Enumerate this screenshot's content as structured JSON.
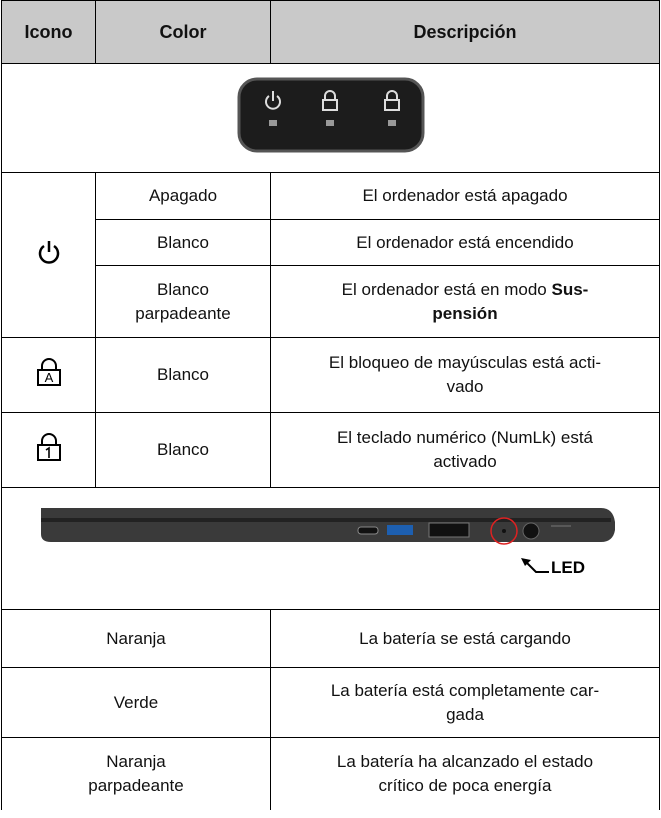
{
  "header": {
    "icon": "Icono",
    "color": "Color",
    "description": "Descripción"
  },
  "led_rows": [
    {
      "color": "Apagado",
      "description": "El ordenador está apagado"
    },
    {
      "color": "Blanco",
      "description": "El ordenador está encendido"
    },
    {
      "color_lines": [
        "Blanco",
        "parpadeante"
      ],
      "description": {
        "text": "El ordenador está en modo",
        "bold_start": "Sus-",
        "bold_end": "pensión"
      }
    },
    {
      "color": "Blanco",
      "description_lines": [
        "El bloqueo de mayúsculas está acti-",
        "vado"
      ]
    },
    {
      "color": "Blanco",
      "description_lines": [
        "El teclado numérico (NumLk) está",
        "activado"
      ]
    }
  ],
  "image_label": "LED",
  "battery_rows": [
    {
      "color": "Naranja",
      "description": "La batería se está cargando"
    },
    {
      "color": "Verde",
      "description_lines": [
        "La batería está completamente car-",
        "gada"
      ]
    },
    {
      "color_lines": [
        "Naranja",
        "parpadeante"
      ],
      "description_lines": [
        "La batería ha alcanzado el estado",
        "crítico de poca energía"
      ]
    }
  ]
}
